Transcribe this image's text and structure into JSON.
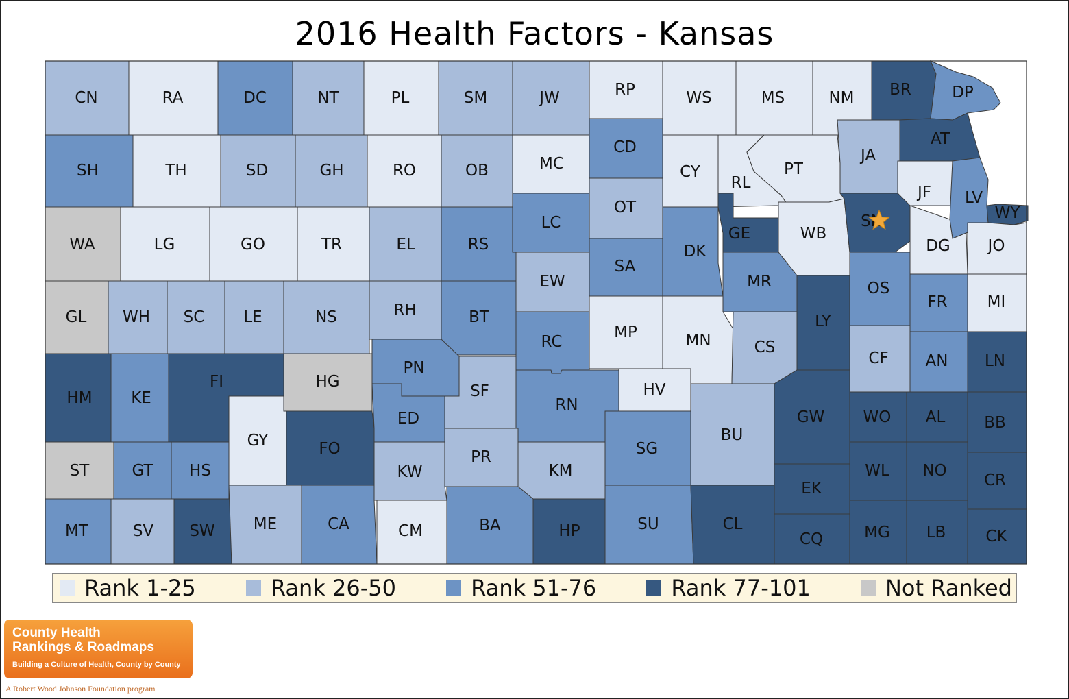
{
  "title": "2016 Health Factors - Kansas",
  "colors": {
    "rank_1_25": "#e3eaf4",
    "rank_26_50": "#a8bcda",
    "rank_51_76": "#6d93c4",
    "rank_77_101": "#365880",
    "not_ranked": "#c8c8c8",
    "legend_bg": "#fdf6df",
    "star": "#f2a93b"
  },
  "legend": [
    {
      "label": "Rank 1-25",
      "color": "#e3eaf4"
    },
    {
      "label": "Rank 26-50",
      "color": "#a8bcda"
    },
    {
      "label": "Rank 51-76",
      "color": "#6d93c4"
    },
    {
      "label": "Rank 77-101",
      "color": "#365880"
    },
    {
      "label": "Not Ranked",
      "color": "#c8c8c8"
    }
  ],
  "counties": {
    "CN": "26-50",
    "RA": "1-25",
    "DC": "51-76",
    "NT": "26-50",
    "PL": "1-25",
    "SM": "26-50",
    "JW": "26-50",
    "RP": "1-25",
    "WS": "1-25",
    "MS": "1-25",
    "NM": "1-25",
    "BR": "77-101",
    "DP": "51-76",
    "SH": "51-76",
    "TH": "1-25",
    "SD": "26-50",
    "GH": "26-50",
    "RO": "1-25",
    "OB": "26-50",
    "MC": "1-25",
    "CD": "51-76",
    "CY": "1-25",
    "RL": "1-25",
    "PT": "1-25",
    "JA": "26-50",
    "AT": "77-101",
    "WA": "Not Ranked",
    "LG": "1-25",
    "GO": "1-25",
    "TR": "1-25",
    "EL": "26-50",
    "RS": "51-76",
    "LC": "51-76",
    "OT": "26-50",
    "DK": "51-76",
    "GE": "77-101",
    "WB": "1-25",
    "SN": "77-101",
    "JF": "1-25",
    "LV": "51-76",
    "WY": "77-101",
    "DG": "1-25",
    "JO": "1-25",
    "SA": "51-76",
    "EW": "26-50",
    "MR": "51-76",
    "OS": "51-76",
    "FR": "51-76",
    "MI": "1-25",
    "GL": "Not Ranked",
    "WH": "26-50",
    "SC": "26-50",
    "LE": "26-50",
    "NS": "26-50",
    "RH": "26-50",
    "BT": "51-76",
    "RC": "51-76",
    "MP": "1-25",
    "MN": "1-25",
    "CS": "26-50",
    "LY": "77-101",
    "CF": "26-50",
    "AN": "51-76",
    "LN": "77-101",
    "HM": "77-101",
    "KE": "51-76",
    "FI": "77-101",
    "HG": "Not Ranked",
    "PN": "51-76",
    "SF": "26-50",
    "RN": "51-76",
    "HV": "1-25",
    "BU": "26-50",
    "GW": "77-101",
    "WO": "77-101",
    "AL": "77-101",
    "BB": "77-101",
    "GY": "1-25",
    "FO": "77-101",
    "ED": "51-76",
    "PR": "26-50",
    "KM": "26-50",
    "SG": "51-76",
    "ST": "Not Ranked",
    "GT": "51-76",
    "HS": "51-76",
    "KW": "26-50",
    "EK": "77-101",
    "WL": "77-101",
    "NO": "77-101",
    "CR": "77-101",
    "MT": "51-76",
    "SV": "26-50",
    "SW": "77-101",
    "ME": "26-50",
    "CA": "51-76",
    "CM": "1-25",
    "BA": "51-76",
    "HP": "77-101",
    "SU": "51-76",
    "CL": "77-101",
    "CQ": "77-101",
    "MG": "77-101",
    "LB": "77-101",
    "CK": "77-101"
  },
  "capital_marker": "SN",
  "logo": {
    "line1": "County Health",
    "line2": "Rankings & Roadmaps",
    "tagline": "Building a Culture of Health, County by County",
    "foundation": "A Robert Wood Johnson Foundation program"
  }
}
